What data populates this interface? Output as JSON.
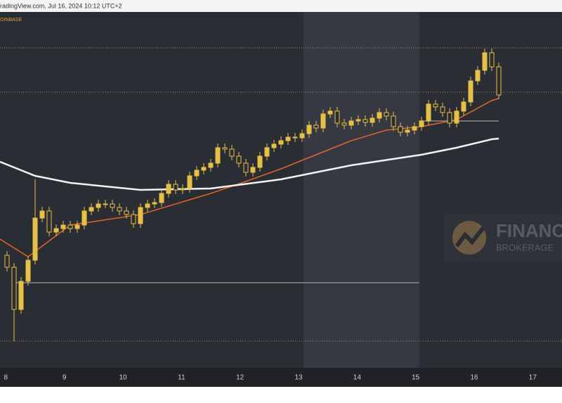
{
  "chart_data": {
    "type": "candlestick",
    "header": "radingView.com, Jul 16, 2024 10:12 UTC+2",
    "exchange": "OINBASE",
    "watermark": "FINANC",
    "watermark_sub": "BROKERAGE",
    "xlim": [
      7.9,
      17.5
    ],
    "ylim": [
      0,
      506
    ],
    "xticks": [
      8,
      9,
      10,
      11,
      12,
      13,
      14,
      15,
      16,
      17
    ],
    "highlight": [
      13.08,
      15.06
    ],
    "levels": [
      455,
      392,
      38
    ],
    "level_color": "#b8a048",
    "ranges": [
      {
        "value": 121,
        "x": [
          8.14,
          15.06
        ]
      },
      {
        "value": 351,
        "x": [
          15.06,
          16.42
        ]
      }
    ],
    "range_color": "#8a8a8a",
    "candles": {
      "color": "#e6bf45",
      "x": [
        8.02,
        8.14,
        8.26,
        8.38,
        8.5,
        8.62,
        8.74,
        8.86,
        8.98,
        9.1,
        9.22,
        9.34,
        9.46,
        9.58,
        9.7,
        9.82,
        9.94,
        10.06,
        10.18,
        10.3,
        10.42,
        10.54,
        10.66,
        10.78,
        10.9,
        11.02,
        11.14,
        11.26,
        11.38,
        11.5,
        11.62,
        11.74,
        11.86,
        11.98,
        12.1,
        12.22,
        12.34,
        12.46,
        12.58,
        12.7,
        12.82,
        12.94,
        13.06,
        13.18,
        13.3,
        13.42,
        13.54,
        13.66,
        13.78,
        13.9,
        14.02,
        14.14,
        14.26,
        14.38,
        14.5,
        14.62,
        14.74,
        14.86,
        14.98,
        15.1,
        15.22,
        15.34,
        15.46,
        15.58,
        15.7,
        15.82,
        15.94,
        16.06,
        16.18,
        16.3,
        16.42
      ],
      "open": [
        160,
        143,
        83,
        123,
        153,
        213,
        223,
        193,
        198,
        203,
        198,
        203,
        223,
        228,
        233,
        233,
        228,
        223,
        218,
        205,
        228,
        233,
        235,
        248,
        261,
        253,
        255,
        273,
        281,
        285,
        291,
        313,
        311,
        301,
        291,
        278,
        285,
        301,
        313,
        318,
        323,
        328,
        327,
        333,
        345,
        341,
        361,
        365,
        348,
        345,
        351,
        353,
        349,
        355,
        363,
        358,
        343,
        335,
        338,
        343,
        351,
        375,
        371,
        363,
        348,
        365,
        378,
        408,
        423,
        448,
        428
      ],
      "high": [
        166,
        149,
        129,
        159,
        268,
        229,
        229,
        204,
        209,
        209,
        209,
        229,
        234,
        239,
        239,
        239,
        234,
        229,
        224,
        234,
        239,
        241,
        254,
        267,
        267,
        261,
        279,
        287,
        291,
        297,
        319,
        319,
        317,
        307,
        297,
        291,
        307,
        319,
        324,
        329,
        334,
        334,
        339,
        351,
        351,
        367,
        371,
        371,
        354,
        357,
        359,
        359,
        361,
        369,
        369,
        364,
        349,
        344,
        349,
        357,
        381,
        381,
        377,
        369,
        371,
        384,
        414,
        429,
        454,
        454,
        434
      ],
      "low": [
        137,
        38,
        77,
        117,
        147,
        207,
        187,
        187,
        192,
        192,
        192,
        197,
        217,
        222,
        227,
        222,
        217,
        212,
        199,
        199,
        222,
        227,
        229,
        242,
        247,
        247,
        249,
        267,
        275,
        279,
        285,
        305,
        295,
        285,
        272,
        272,
        279,
        295,
        307,
        312,
        317,
        321,
        321,
        327,
        335,
        335,
        355,
        342,
        339,
        339,
        345,
        343,
        343,
        349,
        352,
        337,
        329,
        329,
        332,
        337,
        345,
        365,
        357,
        342,
        342,
        359,
        372,
        402,
        417,
        422,
        382
      ],
      "close": [
        143,
        83,
        123,
        153,
        213,
        223,
        193,
        198,
        203,
        198,
        203,
        223,
        228,
        233,
        233,
        228,
        223,
        218,
        205,
        228,
        233,
        235,
        248,
        261,
        253,
        255,
        273,
        281,
        285,
        291,
        313,
        311,
        301,
        291,
        278,
        285,
        301,
        313,
        318,
        323,
        328,
        327,
        333,
        345,
        341,
        361,
        365,
        348,
        345,
        351,
        353,
        349,
        355,
        363,
        358,
        343,
        335,
        338,
        343,
        351,
        375,
        371,
        363,
        348,
        365,
        378,
        408,
        423,
        448,
        428,
        388
      ]
    },
    "series": [
      {
        "color": "#e0642a",
        "x": [
          7.9,
          8.38,
          9.1,
          10.3,
          11.5,
          12.1,
          12.7,
          13.3,
          13.9,
          14.5,
          15.1,
          15.7,
          16.3,
          16.42
        ],
        "values": [
          183,
          158,
          203,
          218,
          248,
          265,
          283,
          303,
          323,
          338,
          343,
          353,
          380,
          383
        ]
      },
      {
        "color": "#f2f2f2",
        "x": [
          7.9,
          8.5,
          9.1,
          10.3,
          11.5,
          12.7,
          13.9,
          15.1,
          15.7,
          16.3,
          16.42
        ],
        "values": [
          293,
          273,
          263,
          253,
          255,
          268,
          288,
          303,
          313,
          325,
          326
        ]
      }
    ]
  }
}
